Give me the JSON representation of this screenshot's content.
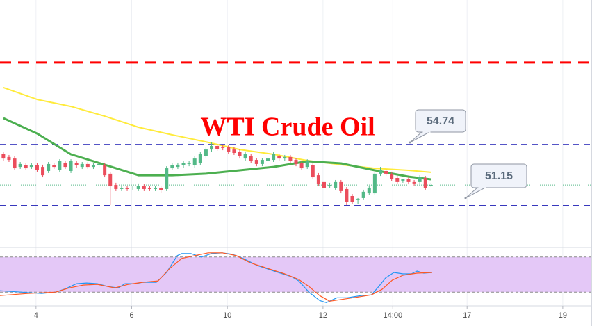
{
  "chart_data": {
    "type": "candlestick",
    "title": "WTI Crude Oil",
    "xlim": [
      -0.6,
      104.6
    ],
    "xticks": [
      {
        "value": 5.8,
        "label": "4"
      },
      {
        "value": 22.8,
        "label": "6"
      },
      {
        "value": 39.8,
        "label": "10"
      },
      {
        "value": 56.8,
        "label": "12"
      },
      {
        "value": 69.2,
        "label": "14:00"
      },
      {
        "value": 82.4,
        "label": "17"
      },
      {
        "value": 99.4,
        "label": "19"
      }
    ],
    "grid": true,
    "ylim": [
      48.74,
      63.23
    ],
    "up_color": "#53b987",
    "down_color": "#eb4d5c",
    "open": [
      54.17,
      54.01,
      53.92,
      53.43,
      53.52,
      53.43,
      53.52,
      53.43,
      53.19,
      53.52,
      53.27,
      53.68,
      53.19,
      53.68,
      53.43,
      53.6,
      53.43,
      53.52,
      53.56,
      53.03,
      52.37,
      52.13,
      52.21,
      52.17,
      52.13,
      52.29,
      52.21,
      52.13,
      52.21,
      52.13,
      53.35,
      53.43,
      53.52,
      53.6,
      53.52,
      53.64,
      54.05,
      54.45,
      54.66,
      54.58,
      54.58,
      54.45,
      54.33,
      53.92,
      54.05,
      53.84,
      53.6,
      53.76,
      53.84,
      54.09,
      53.92,
      54.01,
      53.84,
      53.68,
      53.43,
      53.52,
      52.94,
      52.54,
      52.29,
      52.21,
      52.54,
      52.13,
      51.72,
      51.48,
      51.6,
      51.88,
      51.88,
      53.03,
      53.19,
      53.03,
      52.78,
      52.62,
      52.7,
      52.54,
      52.54,
      52.78,
      52.37
    ],
    "high": [
      54.29,
      54.13,
      54.05,
      53.72,
      53.64,
      53.64,
      53.64,
      53.56,
      53.72,
      53.64,
      53.88,
      53.8,
      53.88,
      53.8,
      53.72,
      53.72,
      53.64,
      53.72,
      53.68,
      53.15,
      52.5,
      52.33,
      52.33,
      52.33,
      52.46,
      52.41,
      52.33,
      52.33,
      52.33,
      53.47,
      53.64,
      53.68,
      53.76,
      53.76,
      54.05,
      54.29,
      54.58,
      54.86,
      54.78,
      54.7,
      54.7,
      54.58,
      54.45,
      54.29,
      54.17,
      53.96,
      53.96,
      54.05,
      54.29,
      54.21,
      54.13,
      54.13,
      53.96,
      53.8,
      53.88,
      53.64,
      53.07,
      52.66,
      52.5,
      52.66,
      52.66,
      52.25,
      51.84,
      51.6,
      52.09,
      52.33,
      53.15,
      53.43,
      53.31,
      53.15,
      52.9,
      52.74,
      52.82,
      52.66,
      52.94,
      52.9,
      52.5
    ],
    "low": [
      53.8,
      53.72,
      53.23,
      53.31,
      53.23,
      53.31,
      53.15,
      52.82,
      53.07,
      53.31,
      53.15,
      53.31,
      53.07,
      53.39,
      53.31,
      53.31,
      53.31,
      53.39,
      52.82,
      51.19,
      52.01,
      52.01,
      52.01,
      52.05,
      52.01,
      52.01,
      52.01,
      52.01,
      51.92,
      52.01,
      53.23,
      53.31,
      53.39,
      53.47,
      53.39,
      53.52,
      53.92,
      54.33,
      54.37,
      54.41,
      54.21,
      54.13,
      53.92,
      53.8,
      53.64,
      53.47,
      53.47,
      53.64,
      53.72,
      53.8,
      53.8,
      53.64,
      53.47,
      53.23,
      53.31,
      52.7,
      52.29,
      52.09,
      52.17,
      52.09,
      51.88,
      51.19,
      51.27,
      51.27,
      51.48,
      51.76,
      51.76,
      52.9,
      52.9,
      52.58,
      52.41,
      52.5,
      52.41,
      52.33,
      52.41,
      52.09,
      52.25
    ],
    "close": [
      53.92,
      53.84,
      53.35,
      53.6,
      53.35,
      53.52,
      53.27,
      52.94,
      53.6,
      53.43,
      53.76,
      53.43,
      53.76,
      53.52,
      53.6,
      53.43,
      53.52,
      53.6,
      52.94,
      52.29,
      52.13,
      52.21,
      52.13,
      52.21,
      52.33,
      52.13,
      52.13,
      52.21,
      52.05,
      53.35,
      53.52,
      53.56,
      53.64,
      53.64,
      53.92,
      54.17,
      54.45,
      54.66,
      54.49,
      54.54,
      54.33,
      54.25,
      54.05,
      54.17,
      53.76,
      53.6,
      53.84,
      53.92,
      54.17,
      53.92,
      54.01,
      53.76,
      53.6,
      53.35,
      53.76,
      52.82,
      52.41,
      52.21,
      52.37,
      52.54,
      52.01,
      51.39,
      51.39,
      51.56,
      51.97,
      52.21,
      53.03,
      53.23,
      53.03,
      52.7,
      52.54,
      52.7,
      52.54,
      52.46,
      52.82,
      52.21,
      52.37
    ],
    "lines": [
      {
        "x": [
          0,
          6,
          12,
          18,
          24,
          30,
          36,
          42,
          48,
          54,
          60,
          66,
          72,
          76
        ],
        "values": [
          58.09,
          57.39,
          56.98,
          56.41,
          55.76,
          55.31,
          54.9,
          54.45,
          54.17,
          53.8,
          53.56,
          53.35,
          53.23,
          53.11
        ],
        "color": "#ffeb3b"
      },
      {
        "x": [
          0,
          6,
          12,
          18,
          24,
          30,
          36,
          42,
          48,
          54,
          60,
          66,
          72,
          76
        ],
        "values": [
          56.29,
          55.39,
          54.17,
          53.56,
          52.94,
          52.94,
          53.03,
          53.23,
          53.43,
          53.76,
          53.64,
          53.23,
          52.86,
          52.7
        ],
        "color": "#4caf50"
      }
    ],
    "levels": [
      {
        "value": 59.56,
        "color": "#ff0000"
      },
      {
        "value": 54.74,
        "color": "#1c1cb4"
      },
      {
        "value": 51.15,
        "color": "#1c1cb4"
      }
    ],
    "callouts": [
      54.74,
      51.15
    ],
    "oscillator": {
      "type": "line",
      "ylim": [
        0,
        100
      ],
      "band": [
        20,
        80
      ],
      "band_color": "#e4c8f7",
      "series": [
        {
          "x": [
            -0.6,
            3.1,
            6.8,
            9.3,
            11.1,
            13.0,
            14.8,
            16.7,
            18.5,
            20.4,
            21.6,
            23.5,
            24.7,
            27.2,
            29.0,
            30.9,
            31.7,
            33.3,
            35.2,
            37.0,
            38.9,
            40.7,
            42.6,
            45.1,
            48.1,
            51.2,
            52.5,
            54.3,
            56.2,
            57.4,
            59.3,
            61.1,
            63.6,
            65.4,
            66.7,
            67.9,
            69.4,
            71.0,
            72.5,
            73.5,
            74.7,
            76.2
          ],
          "values": [
            22.4,
            20,
            17.6,
            20,
            26,
            34.4,
            35.6,
            34.4,
            29.6,
            27.2,
            34.4,
            34.4,
            36.8,
            36.8,
            53.6,
            82.4,
            86,
            86,
            80,
            86,
            87.2,
            84.8,
            77.6,
            65.6,
            56,
            46.4,
            39.2,
            20,
            5.6,
            2,
            10.4,
            10.4,
            14,
            15.2,
            29.6,
            44,
            53.6,
            51.2,
            51.2,
            56,
            52.4,
            53.6
          ],
          "color": "#2196f3"
        },
        {
          "x": [
            -0.6,
            4.3,
            9.3,
            11.7,
            14.2,
            16.7,
            19.8,
            22.2,
            24.7,
            27.5,
            29.6,
            31.7,
            34.0,
            36.4,
            38.9,
            41.4,
            43.8,
            46.9,
            50.0,
            52.5,
            54.3,
            56.2,
            58.0,
            60.5,
            63.0,
            65.4,
            67.3,
            69.1,
            71.0,
            73.5,
            76.2
          ],
          "values": [
            14,
            17.6,
            20,
            27.2,
            32,
            33.2,
            27.2,
            33.2,
            36.8,
            39.2,
            60.8,
            77.6,
            82.4,
            87.2,
            87.2,
            82.4,
            70.4,
            60.8,
            51.2,
            41.6,
            29.6,
            14,
            4.4,
            8,
            11.6,
            15.2,
            24.8,
            40.4,
            48.8,
            52.4,
            53.6
          ],
          "color": "#ff5722"
        }
      ]
    }
  }
}
